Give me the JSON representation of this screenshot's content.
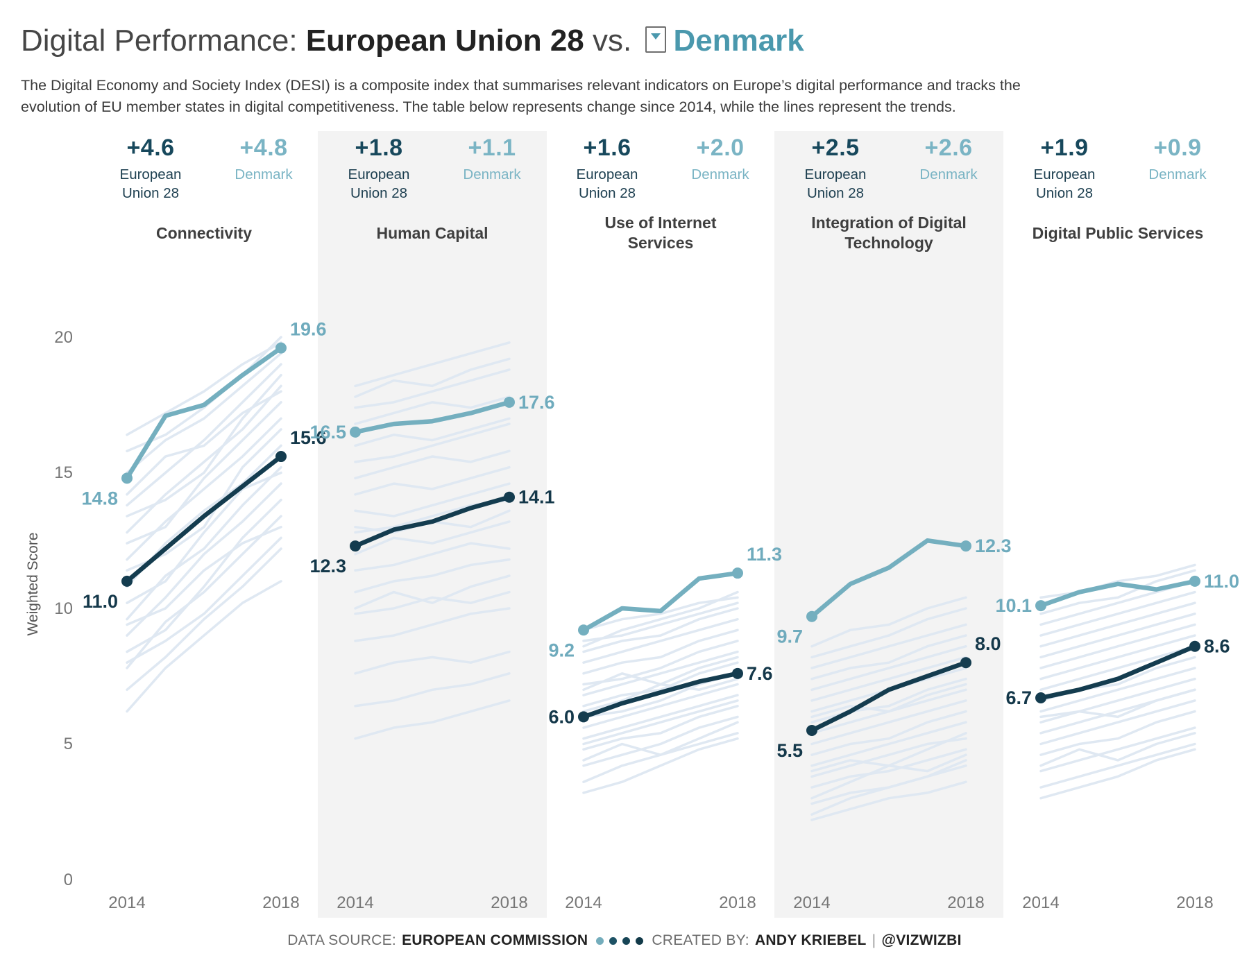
{
  "title": {
    "prefix": "Digital Performance: ",
    "series_a": "European Union 28",
    "vs": " vs. ",
    "series_b": "Denmark"
  },
  "subtitle_line1": "The Digital Economy and Society Index (DESI) is a composite index that summarises relevant indicators on Europe’s digital performance and tracks the",
  "subtitle_line2": "evolution of EU member states in digital competitiveness. The table below represents change since 2014, while the lines represent the trends.",
  "series": {
    "eu_name": "European Union 28",
    "dk_name": "Denmark"
  },
  "colors": {
    "eu_line": "#143c4f",
    "eu_text": "#14384a",
    "dk_line": "#74afbf",
    "dk_text": "#6fabbd",
    "background_line": "#dfe8f2",
    "band": "#f3f3f3",
    "accent_title": "#4a98ad"
  },
  "axis": {
    "y_label": "Weighted Score",
    "y_ticks": [
      "20",
      "15",
      "10",
      "5",
      "0"
    ],
    "x_start": "2014",
    "x_end": "2018"
  },
  "chart_data": {
    "type": "line",
    "x": [
      2014,
      2015,
      2016,
      2017,
      2018
    ],
    "ylim": [
      0,
      20
    ],
    "legend_position": "per-panel header",
    "grid": false,
    "panels": [
      {
        "name": "Connectivity",
        "changes": {
          "eu": "+4.6",
          "dk": "+4.8"
        },
        "eu": [
          11.0,
          12.2,
          13.4,
          14.5,
          15.6
        ],
        "dk": [
          14.8,
          17.1,
          17.5,
          18.6,
          19.6
        ],
        "background": [
          [
            6.2,
            7.8,
            9.0,
            10.2,
            11.0
          ],
          [
            7.0,
            8.2,
            9.6,
            10.8,
            12.2
          ],
          [
            7.8,
            9.5,
            10.6,
            12.0,
            13.4
          ],
          [
            8.4,
            9.2,
            10.8,
            12.6,
            14.0
          ],
          [
            9.0,
            10.4,
            12.0,
            13.2,
            14.6
          ],
          [
            9.6,
            11.2,
            12.2,
            13.8,
            15.2
          ],
          [
            10.2,
            11.0,
            12.8,
            14.4,
            15.0
          ],
          [
            10.8,
            12.4,
            13.6,
            14.6,
            16.0
          ],
          [
            11.4,
            12.0,
            13.0,
            15.2,
            16.6
          ],
          [
            11.8,
            13.2,
            14.4,
            15.6,
            17.0
          ],
          [
            12.4,
            13.0,
            14.8,
            16.2,
            17.6
          ],
          [
            12.8,
            14.2,
            15.4,
            16.6,
            18.2
          ],
          [
            13.4,
            14.0,
            15.0,
            17.0,
            18.6
          ],
          [
            13.8,
            15.0,
            16.2,
            17.6,
            19.0
          ],
          [
            14.2,
            15.6,
            16.0,
            17.2,
            18.0
          ],
          [
            15.0,
            16.2,
            17.0,
            18.2,
            19.4
          ],
          [
            15.8,
            16.4,
            17.4,
            18.6,
            20.0
          ],
          [
            16.4,
            17.2,
            18.0,
            19.0,
            19.8
          ],
          [
            9.4,
            10.0,
            11.4,
            12.4,
            13.0
          ],
          [
            8.0,
            8.8,
            9.8,
            11.2,
            12.6
          ]
        ]
      },
      {
        "name": "Human Capital",
        "changes": {
          "eu": "+1.8",
          "dk": "+1.1"
        },
        "eu": [
          12.3,
          12.9,
          13.2,
          13.7,
          14.1
        ],
        "dk": [
          16.5,
          16.8,
          16.9,
          17.2,
          17.6
        ],
        "background": [
          [
            5.2,
            5.6,
            5.8,
            6.2,
            6.6
          ],
          [
            6.4,
            6.6,
            7.0,
            7.2,
            7.6
          ],
          [
            7.6,
            8.0,
            8.2,
            8.0,
            8.4
          ],
          [
            8.8,
            9.0,
            9.4,
            9.8,
            10.0
          ],
          [
            9.8,
            10.0,
            10.4,
            10.2,
            10.6
          ],
          [
            10.6,
            11.0,
            11.2,
            11.6,
            11.8
          ],
          [
            11.4,
            11.6,
            12.0,
            12.4,
            12.2
          ],
          [
            12.0,
            12.6,
            12.4,
            12.8,
            13.2
          ],
          [
            12.8,
            13.0,
            13.4,
            13.8,
            14.0
          ],
          [
            13.6,
            13.4,
            13.8,
            14.2,
            14.6
          ],
          [
            14.2,
            14.6,
            14.4,
            14.8,
            15.2
          ],
          [
            14.8,
            15.2,
            15.6,
            15.4,
            15.8
          ],
          [
            15.4,
            15.6,
            16.0,
            16.4,
            16.8
          ],
          [
            16.0,
            16.4,
            16.2,
            16.6,
            17.0
          ],
          [
            16.8,
            17.2,
            17.6,
            17.4,
            17.8
          ],
          [
            17.4,
            17.6,
            18.0,
            18.4,
            18.8
          ],
          [
            17.8,
            18.4,
            18.2,
            18.8,
            19.2
          ],
          [
            18.2,
            18.6,
            19.0,
            19.4,
            19.8
          ],
          [
            10.0,
            10.6,
            10.2,
            10.8,
            11.2
          ],
          [
            13.0,
            12.8,
            13.2,
            13.0,
            13.6
          ]
        ]
      },
      {
        "name": "Use of Internet Services",
        "changes": {
          "eu": "+1.6",
          "dk": "+2.0"
        },
        "eu": [
          6.0,
          6.5,
          6.9,
          7.3,
          7.6
        ],
        "dk": [
          9.2,
          10.0,
          9.9,
          11.1,
          11.3
        ],
        "background": [
          [
            3.6,
            4.2,
            4.6,
            5.0,
            5.4
          ],
          [
            4.2,
            4.6,
            5.0,
            5.6,
            6.0
          ],
          [
            4.8,
            5.2,
            5.4,
            6.0,
            6.4
          ],
          [
            5.2,
            5.6,
            6.0,
            6.4,
            6.8
          ],
          [
            5.6,
            6.0,
            6.4,
            6.8,
            7.2
          ],
          [
            6.0,
            6.2,
            6.6,
            7.2,
            7.6
          ],
          [
            6.4,
            6.8,
            7.0,
            7.6,
            8.0
          ],
          [
            6.8,
            7.2,
            7.6,
            8.0,
            8.4
          ],
          [
            7.2,
            7.4,
            7.8,
            8.4,
            8.8
          ],
          [
            7.6,
            8.0,
            8.2,
            8.8,
            9.2
          ],
          [
            8.0,
            8.4,
            8.8,
            9.2,
            9.6
          ],
          [
            8.4,
            8.8,
            9.0,
            9.6,
            10.0
          ],
          [
            8.8,
            9.0,
            9.4,
            9.8,
            10.2
          ],
          [
            9.2,
            9.6,
            9.8,
            10.2,
            10.4
          ],
          [
            7.0,
            7.6,
            7.2,
            7.8,
            8.2
          ],
          [
            5.0,
            5.4,
            5.8,
            6.2,
            6.6
          ],
          [
            6.2,
            6.6,
            7.2,
            7.0,
            7.4
          ],
          [
            8.6,
            9.2,
            9.6,
            10.0,
            10.6
          ],
          [
            4.4,
            5.0,
            4.6,
            5.2,
            5.8
          ],
          [
            3.2,
            3.6,
            4.2,
            4.8,
            5.2
          ]
        ]
      },
      {
        "name": "Integration of Digital Technology",
        "changes": {
          "eu": "+2.5",
          "dk": "+2.6"
        },
        "eu": [
          5.5,
          6.2,
          7.0,
          7.5,
          8.0
        ],
        "dk": [
          9.7,
          10.9,
          11.5,
          12.5,
          12.3
        ],
        "background": [
          [
            2.2,
            2.6,
            3.0,
            3.2,
            3.6
          ],
          [
            2.8,
            3.2,
            3.4,
            3.8,
            4.2
          ],
          [
            3.4,
            3.8,
            4.0,
            4.4,
            4.8
          ],
          [
            3.8,
            4.2,
            4.6,
            5.0,
            5.2
          ],
          [
            4.2,
            4.6,
            5.0,
            5.4,
            5.8
          ],
          [
            4.6,
            5.0,
            5.2,
            5.8,
            6.2
          ],
          [
            5.0,
            5.4,
            5.8,
            6.2,
            6.6
          ],
          [
            5.4,
            5.8,
            6.2,
            6.6,
            7.0
          ],
          [
            5.8,
            6.2,
            6.4,
            7.0,
            7.4
          ],
          [
            6.2,
            6.6,
            7.0,
            7.4,
            7.8
          ],
          [
            6.6,
            7.0,
            7.4,
            7.8,
            8.2
          ],
          [
            7.0,
            7.4,
            7.8,
            8.2,
            8.6
          ],
          [
            7.4,
            7.8,
            8.0,
            8.6,
            9.0
          ],
          [
            7.8,
            8.2,
            8.6,
            9.0,
            9.4
          ],
          [
            8.2,
            8.6,
            9.0,
            9.6,
            10.0
          ],
          [
            8.6,
            9.2,
            9.4,
            10.0,
            10.4
          ],
          [
            3.0,
            3.6,
            4.2,
            4.0,
            4.6
          ],
          [
            4.0,
            4.4,
            4.2,
            4.8,
            5.4
          ],
          [
            6.0,
            6.4,
            6.2,
            6.8,
            7.2
          ],
          [
            2.4,
            3.0,
            3.4,
            3.8,
            4.4
          ]
        ]
      },
      {
        "name": "Digital Public Services",
        "changes": {
          "eu": "+1.9",
          "dk": "+0.9"
        },
        "eu": [
          6.7,
          7.0,
          7.4,
          8.0,
          8.6
        ],
        "dk": [
          10.1,
          10.6,
          10.9,
          10.7,
          11.0
        ],
        "background": [
          [
            3.4,
            3.8,
            4.2,
            4.6,
            5.0
          ],
          [
            4.0,
            4.4,
            4.8,
            5.2,
            5.6
          ],
          [
            4.6,
            5.0,
            5.2,
            5.8,
            6.2
          ],
          [
            5.0,
            5.4,
            5.8,
            6.2,
            6.6
          ],
          [
            5.4,
            5.8,
            6.2,
            6.6,
            7.0
          ],
          [
            5.8,
            6.2,
            6.6,
            7.0,
            7.4
          ],
          [
            6.2,
            6.6,
            7.0,
            7.4,
            7.8
          ],
          [
            6.6,
            7.0,
            7.2,
            7.8,
            8.2
          ],
          [
            7.0,
            7.4,
            7.8,
            8.2,
            8.6
          ],
          [
            7.4,
            7.8,
            8.2,
            8.6,
            9.0
          ],
          [
            7.8,
            8.2,
            8.6,
            9.0,
            9.4
          ],
          [
            8.2,
            8.6,
            9.0,
            9.4,
            9.8
          ],
          [
            8.6,
            9.0,
            9.4,
            9.8,
            10.2
          ],
          [
            9.0,
            9.4,
            9.8,
            10.2,
            10.6
          ],
          [
            9.4,
            9.8,
            10.2,
            10.6,
            11.0
          ],
          [
            9.8,
            10.2,
            10.4,
            11.0,
            11.4
          ],
          [
            10.4,
            10.6,
            11.0,
            11.2,
            11.6
          ],
          [
            4.2,
            4.8,
            4.4,
            5.0,
            5.4
          ],
          [
            3.0,
            3.4,
            3.8,
            4.4,
            4.8
          ],
          [
            6.0,
            6.2,
            6.0,
            6.6,
            7.0
          ]
        ]
      }
    ]
  },
  "footer": {
    "data_source_label": "DATA SOURCE:",
    "data_source": "EUROPEAN COMMISSION",
    "created_by_label": "CREATED BY:",
    "author": "ANDY KRIEBEL",
    "separator": "|",
    "handle": "@VIZWIZBI",
    "dot_colors": [
      "#74adbc",
      "#1d5265",
      "#174556",
      "#123a49"
    ]
  }
}
